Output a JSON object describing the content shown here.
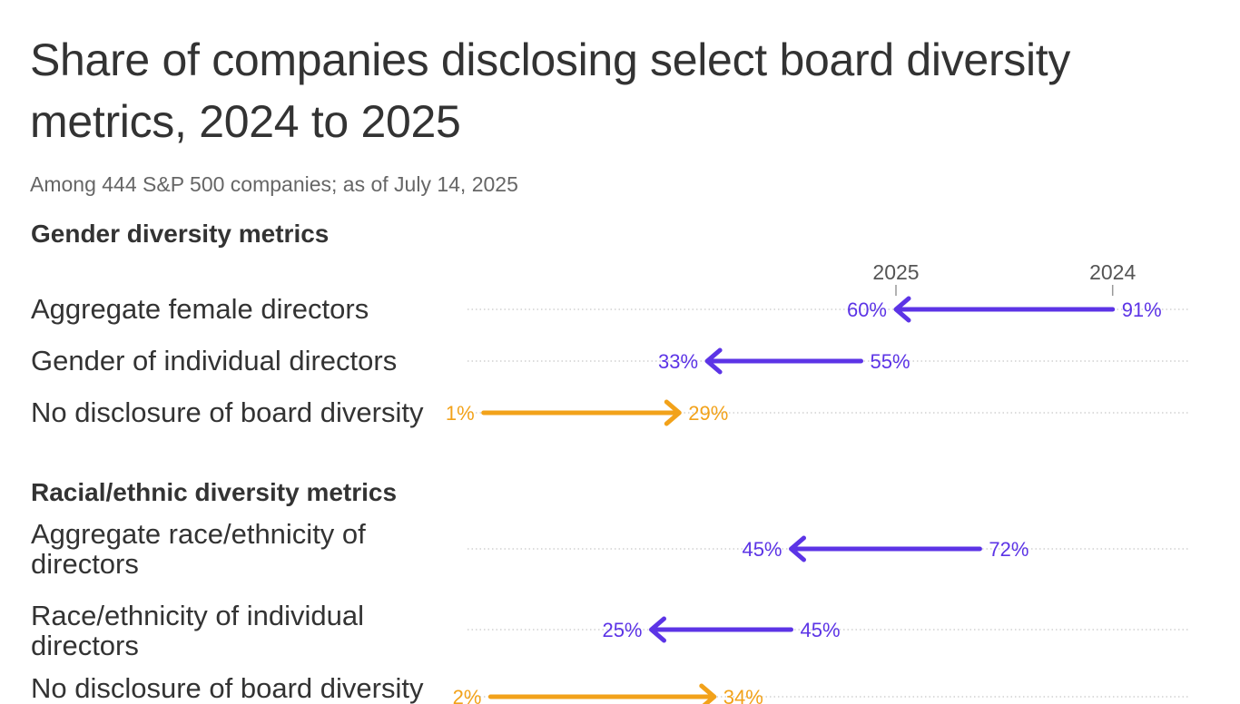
{
  "chart_data": {
    "type": "arrow",
    "title": "Share of companies disclosing select board diversity metrics, 2024 to 2025",
    "subtitle": "Among 444 S&P 500 companies; as of July 14, 2025",
    "years": {
      "start": "2024",
      "end": "2025"
    },
    "xlim": [
      0,
      100
    ],
    "colors": {
      "decrease": "#5c34e6",
      "increase": "#f2a21a",
      "grid": "#c8c8c8"
    },
    "sections": [
      {
        "heading": "Gender diversity metrics",
        "rows": [
          {
            "label": "Aggregate female directors",
            "from": 91,
            "to": 60,
            "from_label": "91%",
            "to_label": "60%"
          },
          {
            "label": "Gender of individual directors",
            "from": 55,
            "to": 33,
            "from_label": "55%",
            "to_label": "33%"
          },
          {
            "label": "No disclosure of board diversity",
            "from": 1,
            "to": 29,
            "from_label": "1%",
            "to_label": "29%"
          }
        ]
      },
      {
        "heading": "Racial/ethnic diversity metrics",
        "rows": [
          {
            "label": "Aggregate race/ethnicity of directors",
            "from": 72,
            "to": 45,
            "from_label": "72%",
            "to_label": "45%"
          },
          {
            "label": "Race/ethnicity of individual directors",
            "from": 45,
            "to": 25,
            "from_label": "45%",
            "to_label": "25%"
          },
          {
            "label": "No disclosure of board diversity",
            "from": 2,
            "to": 34,
            "from_label": "2%",
            "to_label": "34%"
          }
        ]
      }
    ]
  }
}
